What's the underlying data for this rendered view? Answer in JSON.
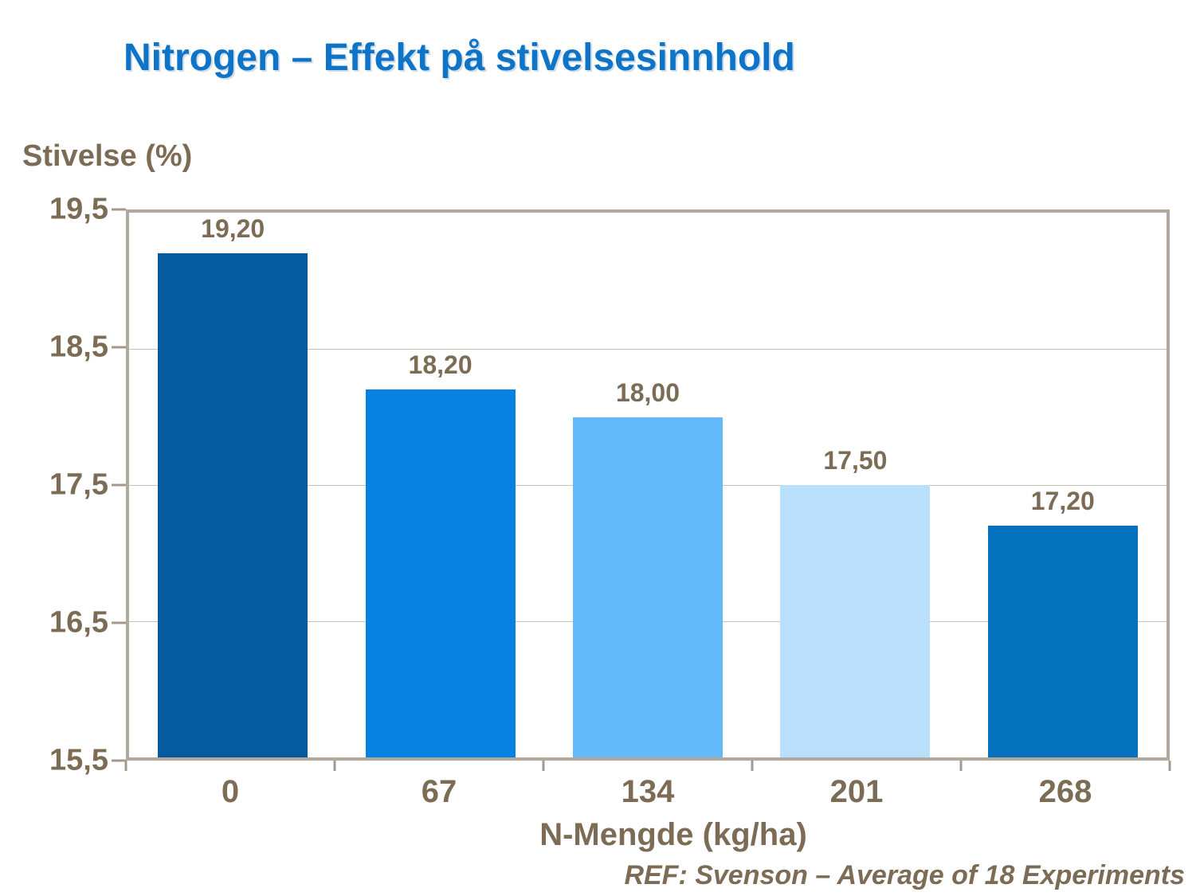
{
  "header": {
    "title": "Nitrogen – Effekt på stivelsesinnhold"
  },
  "chart_data": {
    "type": "bar",
    "title": "Nitrogen – Effekt på stivelsesinnhold",
    "ylabel": "Stivelse (%)",
    "xlabel": "N-Mengde (kg/ha)",
    "categories": [
      "0",
      "67",
      "134",
      "201",
      "268"
    ],
    "values": [
      19.2,
      18.2,
      18.0,
      17.5,
      17.2
    ],
    "value_labels": [
      "19,20",
      "18,20",
      "18,00",
      "17,50",
      "17,20"
    ],
    "y_tick_labels": [
      "19,5",
      "18,5",
      "17,5",
      "16,5",
      "15,5"
    ],
    "ylim": [
      15.5,
      19.5
    ],
    "grid": "horizontal gridlines at 18.5, 17.5, 16.5",
    "legend": "none",
    "bar_colors": [
      "#065A9F",
      "#0683E2",
      "#64B9FB",
      "#BADFFA",
      "#0572C0"
    ],
    "annotation": "REF: Svenson – Average of 18 Experiments"
  },
  "colors": {
    "title_blue": "#0E74C7",
    "text_brown": "#7C6C55",
    "plot_border_tan": "#B2A89B",
    "gridline": "#C9C1B5",
    "tick": "#A49A8C",
    "background": "#FFFFFF"
  },
  "footer": {
    "ref_label": "REF: Svenson – Average of 18 Experiments"
  }
}
